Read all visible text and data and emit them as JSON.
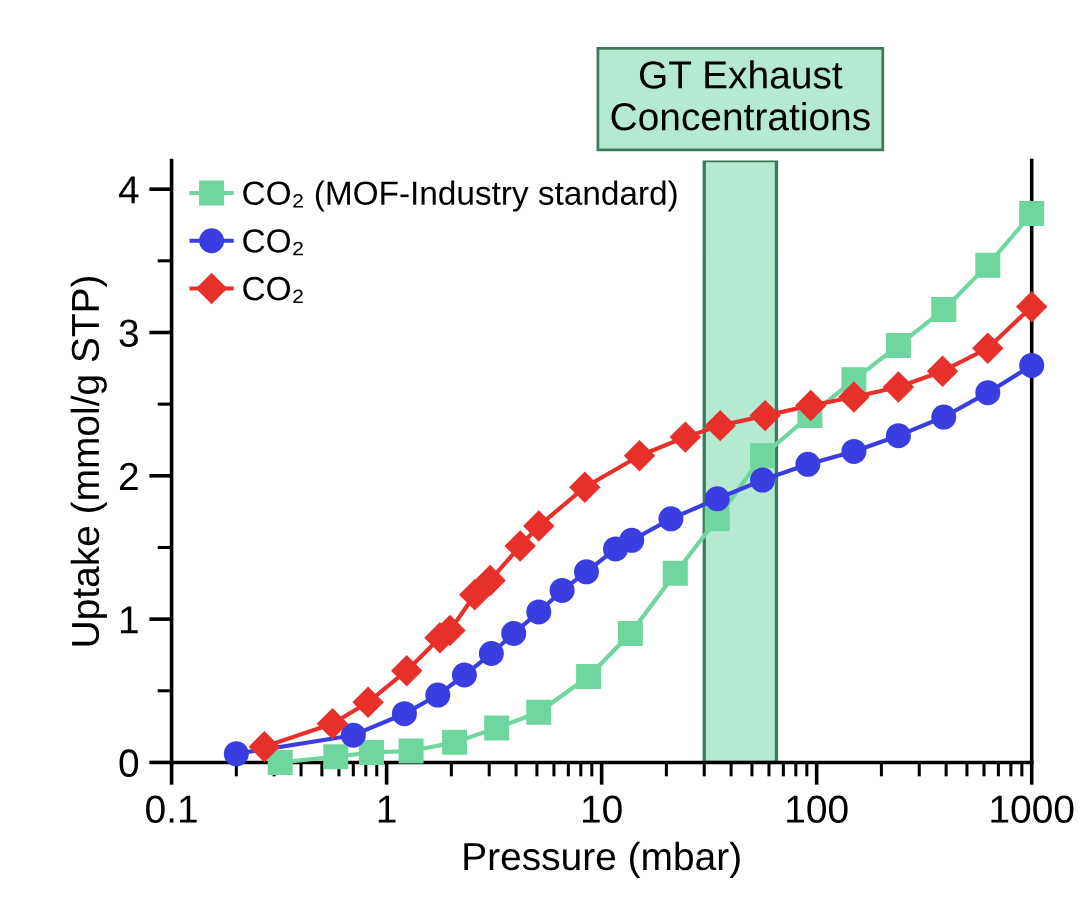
{
  "chart_data": {
    "type": "line",
    "xlabel": "Pressure (mbar)",
    "ylabel": "Uptake (mmol/g STP)",
    "log": "x",
    "xlim": [
      0.1,
      1000
    ],
    "xticks": [
      0.1,
      1,
      10,
      100,
      1000
    ],
    "ylim": [
      0,
      4.2
    ],
    "yticks": [
      0,
      1,
      2,
      3,
      4
    ],
    "grid": false,
    "legend": "top left",
    "line_style": "solid",
    "bands": [
      {
        "axis": "x",
        "from": 30,
        "to": 65,
        "label": "GT Exhaust\nConcentrations",
        "color": "#b5ead2"
      }
    ],
    "series": [
      {
        "name": "CO₂ (MOF-Industry standard)",
        "color": "#6fd6a0",
        "marker": "square",
        "x": [
          0.32,
          0.58,
          0.85,
          1.3,
          2.07,
          3.25,
          5.1,
          8.7,
          13.6,
          22,
          34.5,
          56,
          93,
          149,
          240,
          390,
          625,
          1000
        ],
        "values": [
          0,
          0.04,
          0.07,
          0.08,
          0.14,
          0.24,
          0.35,
          0.6,
          0.9,
          1.32,
          1.7,
          2.14,
          2.42,
          2.67,
          2.91,
          3.16,
          3.47,
          3.83
        ]
      },
      {
        "name": "CO₂",
        "color": "#3a3ee0",
        "marker": "circle",
        "x": [
          0.2,
          0.7,
          1.21,
          1.73,
          2.3,
          3.07,
          3.9,
          5.1,
          6.55,
          8.5,
          11.6,
          13.8,
          21,
          34.5,
          56,
          91,
          149,
          240,
          390,
          625,
          1000
        ],
        "values": [
          0.06,
          0.19,
          0.34,
          0.47,
          0.61,
          0.76,
          0.9,
          1.05,
          1.2,
          1.33,
          1.49,
          1.55,
          1.7,
          1.84,
          1.97,
          2.08,
          2.17,
          2.28,
          2.41,
          2.58,
          2.77
        ]
      },
      {
        "name": "CO₂",
        "color": "#e8302a",
        "marker": "diamond",
        "x": [
          0.27,
          0.56,
          0.82,
          1.24,
          1.77,
          1.97,
          2.57,
          3.03,
          4.18,
          5.1,
          8.35,
          15,
          24.5,
          35.6,
          57.6,
          93.9,
          149,
          240,
          385,
          625,
          1000
        ],
        "values": [
          0.11,
          0.27,
          0.42,
          0.64,
          0.87,
          0.92,
          1.17,
          1.27,
          1.51,
          1.65,
          1.92,
          2.14,
          2.27,
          2.35,
          2.42,
          2.49,
          2.55,
          2.62,
          2.73,
          2.89,
          3.18
        ]
      }
    ]
  }
}
